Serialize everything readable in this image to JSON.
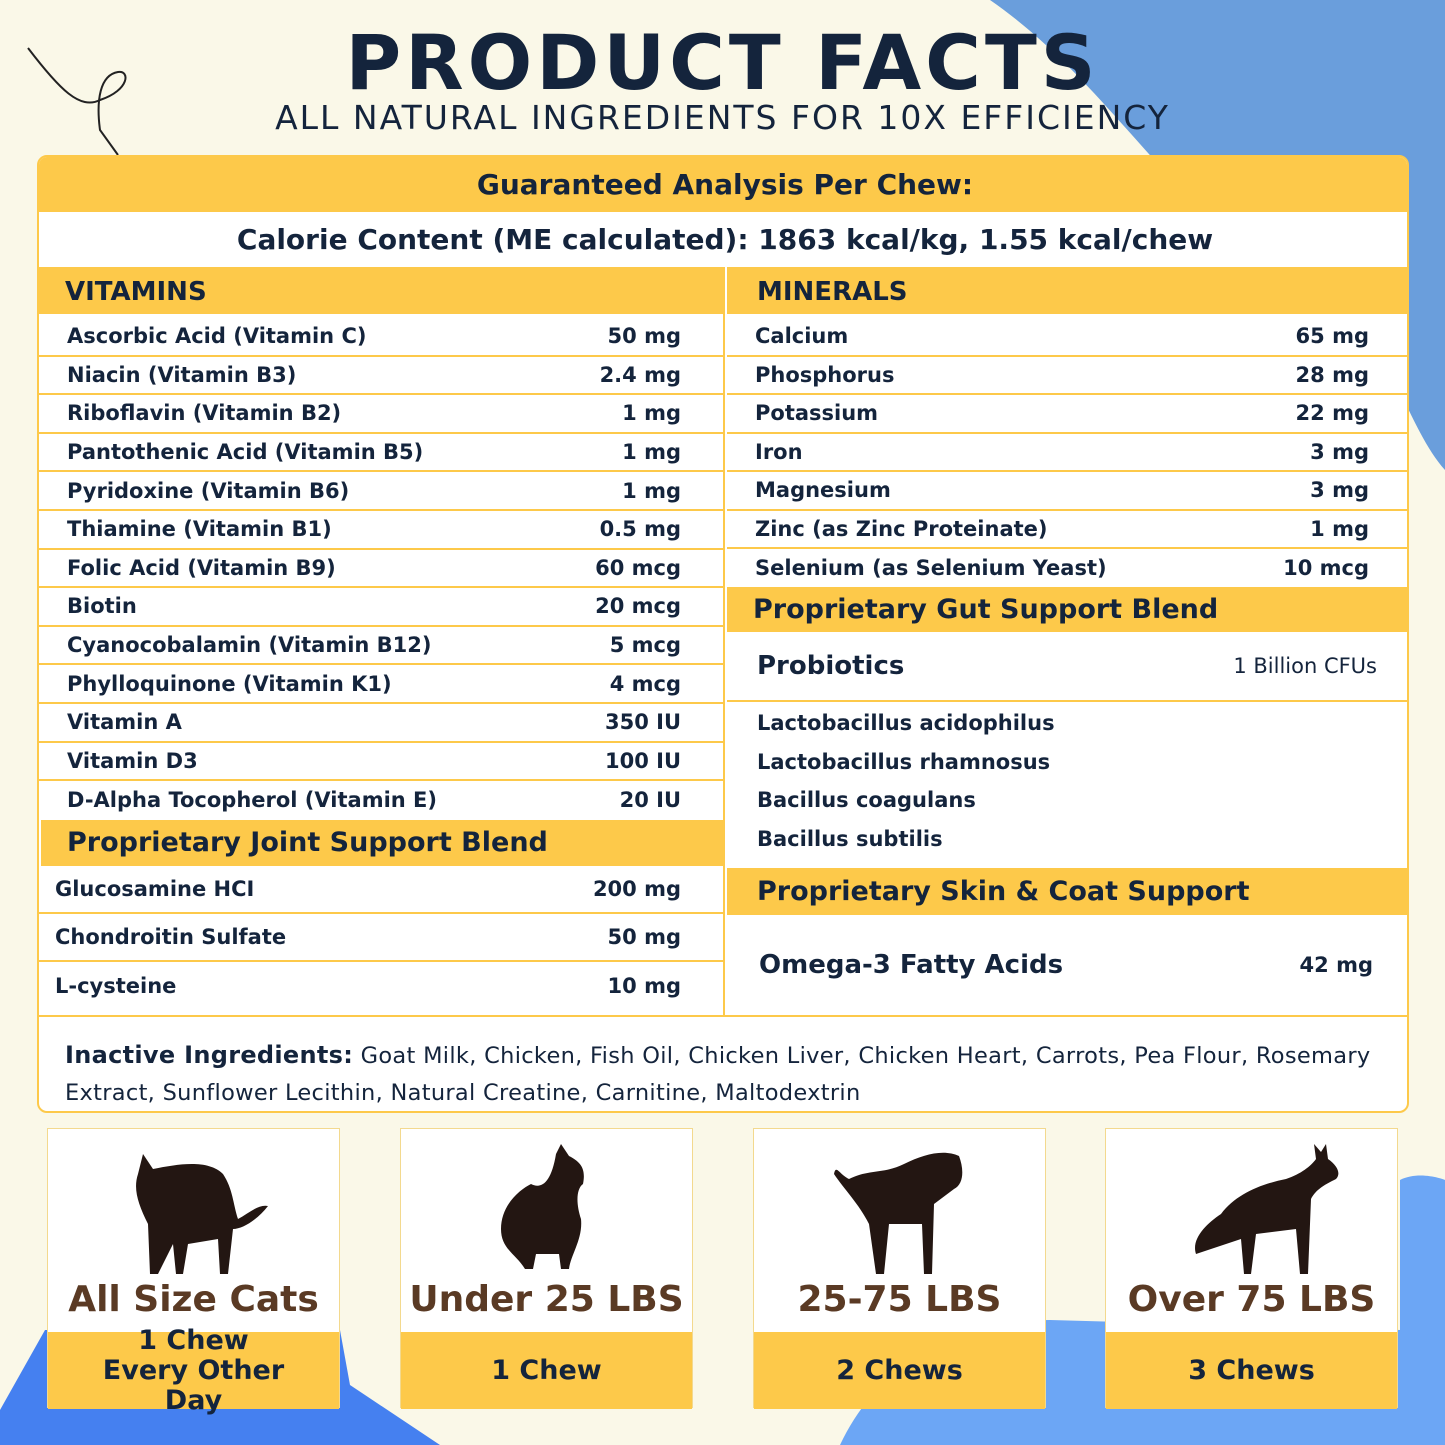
{
  "header": {
    "title": "PRODUCT FACTS",
    "subtitle": "ALL NATURAL INGREDIENTS FOR 10X EFFICIENCY"
  },
  "colors": {
    "accent_yellow": "#FDC94A",
    "background": "#FAF8E8",
    "blue": "#6A9EDC",
    "navy": "#14243C",
    "brown": "#5A3A24"
  },
  "analysis": {
    "title": "Guaranteed Analysis Per Chew:",
    "calorie": "Calorie Content (ME calculated): 1863 kcal/kg, 1.55 kcal/chew"
  },
  "vitamins": {
    "title": "VITAMINS",
    "items": [
      {
        "name": "Ascorbic Acid (Vitamin C)",
        "amount": "50 mg"
      },
      {
        "name": "Niacin (Vitamin B3)",
        "amount": "2.4 mg"
      },
      {
        "name": "Riboflavin (Vitamin B2)",
        "amount": "1 mg"
      },
      {
        "name": "Pantothenic Acid (Vitamin B5)",
        "amount": "1 mg"
      },
      {
        "name": "Pyridoxine (Vitamin B6)",
        "amount": "1 mg"
      },
      {
        "name": "Thiamine (Vitamin B1)",
        "amount": "0.5 mg"
      },
      {
        "name": "Folic Acid (Vitamin B9)",
        "amount": "60 mcg"
      },
      {
        "name": "Biotin",
        "amount": "20 mcg"
      },
      {
        "name": "Cyanocobalamin (Vitamin B12)",
        "amount": "5 mcg"
      },
      {
        "name": "Phylloquinone (Vitamin K1)",
        "amount": "4 mcg"
      },
      {
        "name": "Vitamin A",
        "amount": "350 IU"
      },
      {
        "name": "Vitamin D3",
        "amount": "100 IU"
      },
      {
        "name": "D-Alpha Tocopherol (Vitamin E)",
        "amount": "20 IU"
      }
    ]
  },
  "joint": {
    "title": "Proprietary Joint Support Blend",
    "items": [
      {
        "name": "Glucosamine HCI",
        "amount": "200 mg"
      },
      {
        "name": "Chondroitin Sulfate",
        "amount": "50 mg"
      },
      {
        "name": "L-cysteine",
        "amount": "10 mg"
      }
    ]
  },
  "minerals": {
    "title": "MINERALS",
    "items": [
      {
        "name": "Calcium",
        "amount": "65 mg"
      },
      {
        "name": "Phosphorus",
        "amount": "28 mg"
      },
      {
        "name": "Potassium",
        "amount": "22 mg"
      },
      {
        "name": "Iron",
        "amount": "3 mg"
      },
      {
        "name": "Magnesium",
        "amount": "3 mg"
      },
      {
        "name": "Zinc (as Zinc Proteinate)",
        "amount": "1 mg"
      },
      {
        "name": "Selenium (as Selenium Yeast)",
        "amount": "10 mcg"
      }
    ]
  },
  "gut": {
    "title": "Proprietary Gut Support Blend",
    "probiotics_label": "Probiotics",
    "probiotics_amount": "1 Billion CFUs",
    "strains": [
      "Lactobacillus acidophilus",
      "Lactobacillus rhamnosus",
      "Bacillus coagulans",
      "Bacillus subtilis"
    ]
  },
  "skin": {
    "title": "Proprietary Skin & Coat Support",
    "item": "Omega-3 Fatty Acids",
    "amount": "42 mg"
  },
  "inactive": {
    "label": "Inactive Ingredients:",
    "text": "Goat Milk, Chicken, Fish Oil, Chicken Liver, Chicken Heart, Carrots, Pea Flour, Rosemary Extract, Sunflower Lecithin, Natural Creatine, Carnitine, Maltodextrin"
  },
  "dosage": [
    {
      "icon": "cat-icon",
      "label": "All Size Cats",
      "dose": "1 Chew Every Other Day"
    },
    {
      "icon": "small-dog-icon",
      "label": "Under 25 LBS",
      "dose": "1 Chew"
    },
    {
      "icon": "medium-dog-icon",
      "label": "25-75 LBS",
      "dose": "2 Chews"
    },
    {
      "icon": "large-dog-icon",
      "label": "Over 75 LBS",
      "dose": "3 Chews"
    }
  ]
}
